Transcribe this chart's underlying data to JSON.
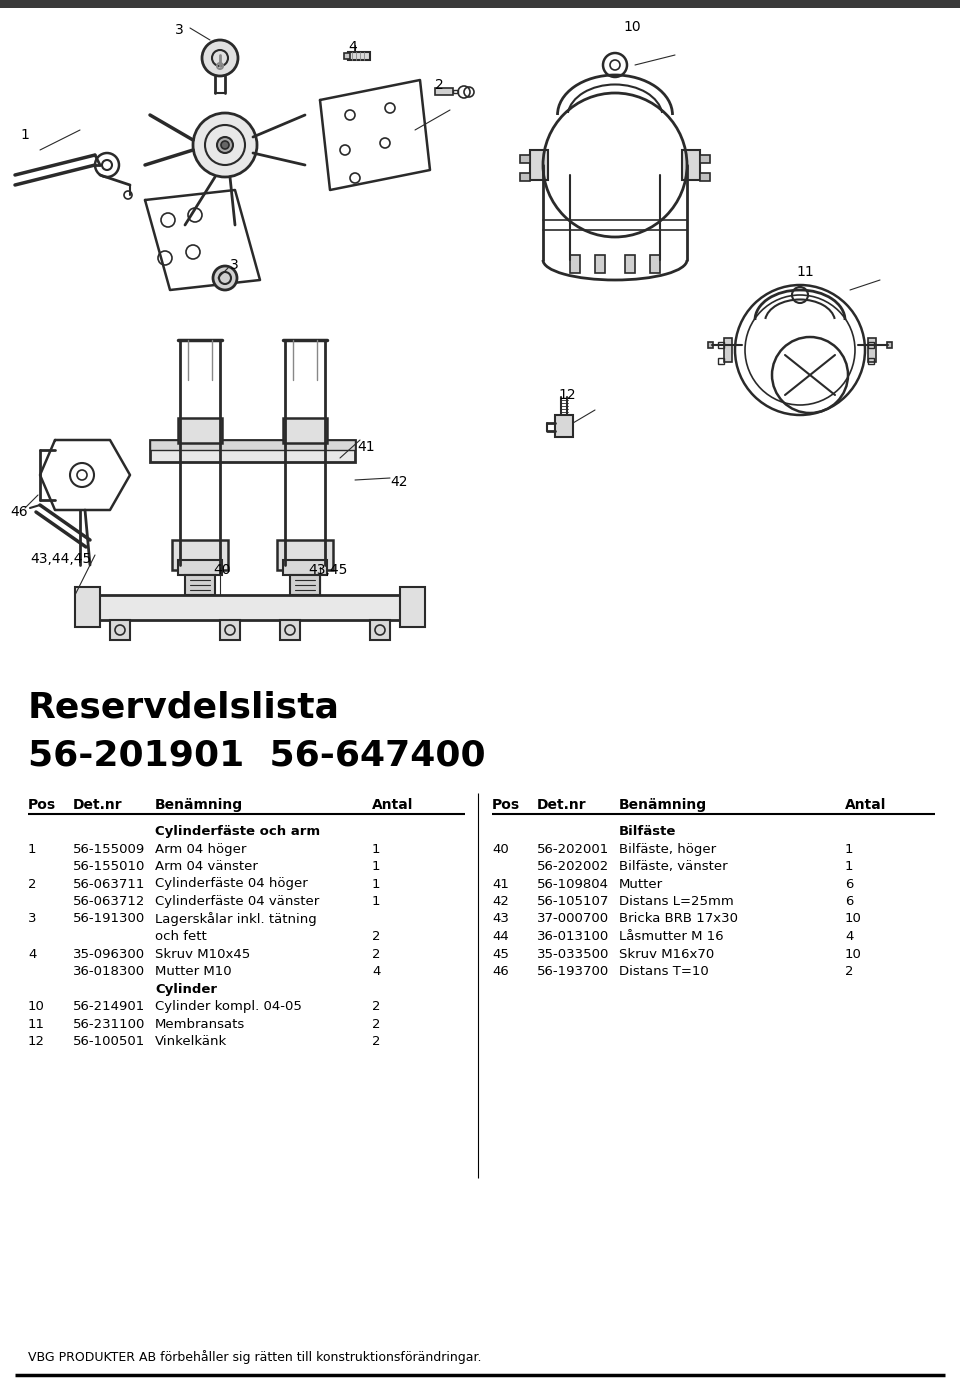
{
  "title_line1": "Reservdelslista",
  "title_line2": "56-201901  56-647400",
  "section1_header": "Cylinderfäste och arm",
  "section2_header": "Bilfäste",
  "section3_header": "Cylinder",
  "left_data": [
    [
      "1",
      "56-155009",
      "Arm 04 höger",
      "1",
      false
    ],
    [
      "",
      "56-155010",
      "Arm 04 vänster",
      "1",
      false
    ],
    [
      "2",
      "56-063711",
      "Cylinderfäste 04 höger",
      "1",
      false
    ],
    [
      "",
      "56-063712",
      "Cylinderfäste 04 vänster",
      "1",
      false
    ],
    [
      "3",
      "56-191300",
      "Lagerskålar inkl. tätning",
      "",
      false
    ],
    [
      "",
      "",
      "och fett",
      "2",
      false
    ],
    [
      "4",
      "35-096300",
      "Skruv M10x45",
      "2",
      false
    ],
    [
      "",
      "36-018300",
      "Mutter M10",
      "4",
      false
    ],
    [
      "",
      "",
      "Cylinder",
      "",
      true
    ],
    [
      "10",
      "56-214901",
      "Cylinder kompl. 04-05",
      "2",
      false
    ],
    [
      "11",
      "56-231100",
      "Membransats",
      "2",
      false
    ],
    [
      "12",
      "56-100501",
      "Vinkelkänk",
      "2",
      false
    ]
  ],
  "right_data": [
    [
      "40",
      "56-202001",
      "Bilfäste, höger",
      "1"
    ],
    [
      "",
      "56-202002",
      "Bilfäste, vänster",
      "1"
    ],
    [
      "41",
      "56-109804",
      "Mutter",
      "6"
    ],
    [
      "42",
      "56-105107",
      "Distans L=25mm",
      "6"
    ],
    [
      "43",
      "37-000700",
      "Bricka BRB 17x30",
      "10"
    ],
    [
      "44",
      "36-013100",
      "Låsmutter M 16",
      "4"
    ],
    [
      "45",
      "35-033500",
      "Skruv M16x70",
      "10"
    ],
    [
      "46",
      "56-193700",
      "Distans T=10",
      "2"
    ]
  ],
  "footer": "VBG PRODUKTER AB förbehåller sig rätten till konstruktionsförändringar.",
  "bg_color": "#ffffff",
  "lc": "#2a2a2a",
  "top_bar_color": "#4a4a4a"
}
